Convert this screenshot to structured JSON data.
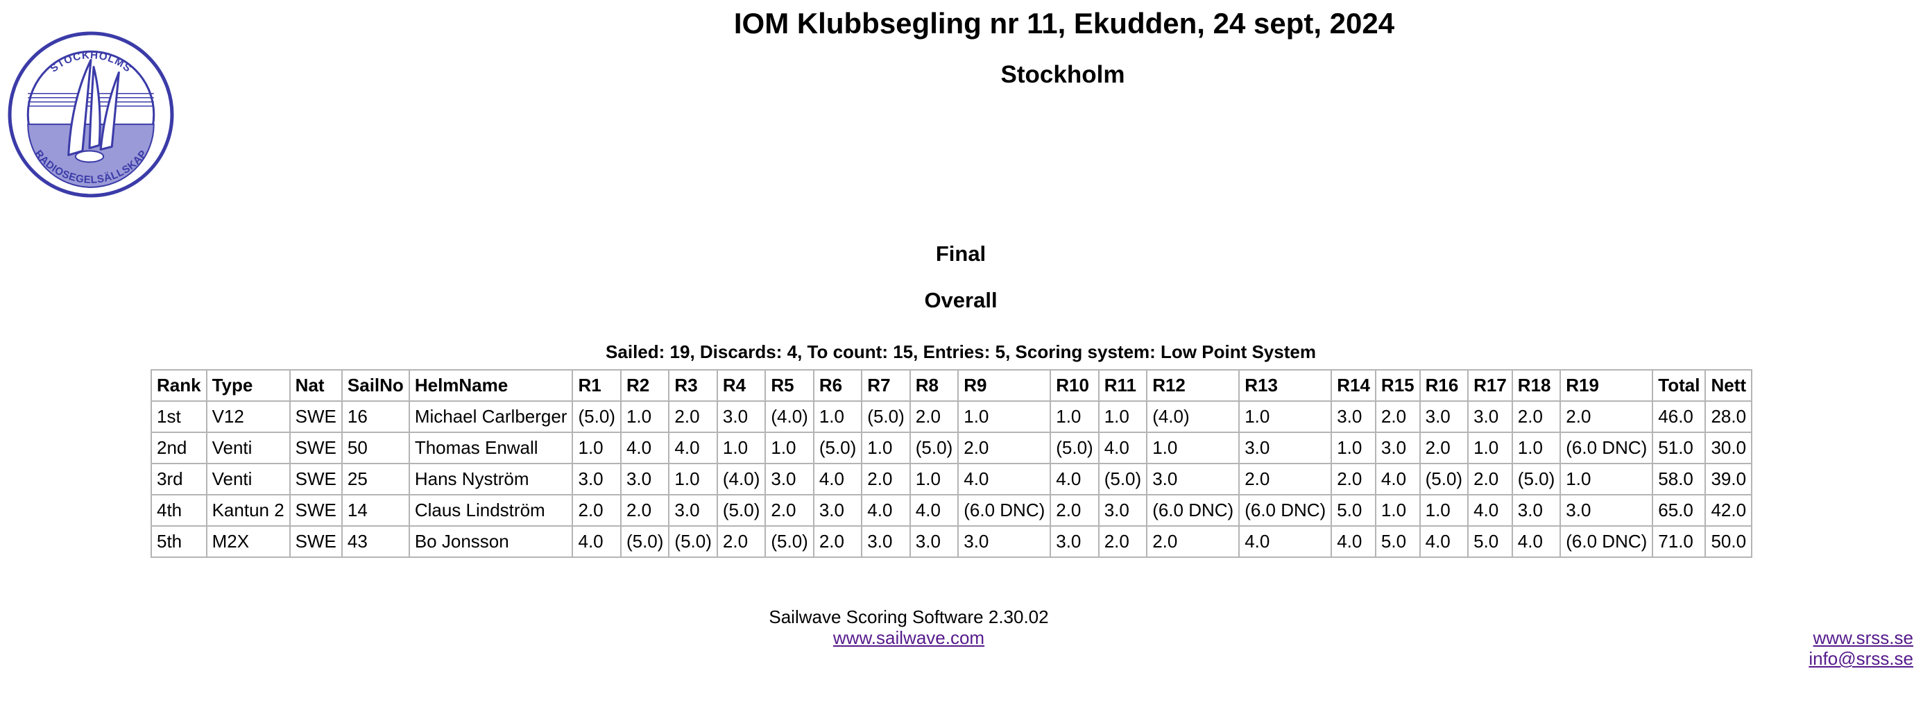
{
  "logo": {
    "text_top": "STOCKHOLMS",
    "text_bottom": "RADIOSEGELSÄLLSKAP",
    "color": "#3b3ba8"
  },
  "header": {
    "title": "IOM Klubbsegling nr 11, Ekudden, 24 sept, 2024",
    "venue": "Stockholm",
    "status": "Final",
    "group": "Overall"
  },
  "summary": "Sailed: 19, Discards: 4, To count: 15, Entries: 5, Scoring system: Low Point System",
  "table": {
    "columns": [
      "Rank",
      "Type",
      "Nat",
      "SailNo",
      "HelmName",
      "R1",
      "R2",
      "R3",
      "R4",
      "R5",
      "R6",
      "R7",
      "R8",
      "R9",
      "R10",
      "R11",
      "R12",
      "R13",
      "R14",
      "R15",
      "R16",
      "R17",
      "R18",
      "R19",
      "Total",
      "Nett"
    ],
    "rows": [
      [
        "1st",
        "V12",
        "SWE",
        "16",
        "Michael Carlberger",
        "(5.0)",
        "1.0",
        "2.0",
        "3.0",
        "(4.0)",
        "1.0",
        "(5.0)",
        "2.0",
        "1.0",
        "1.0",
        "1.0",
        "(4.0)",
        "1.0",
        "3.0",
        "2.0",
        "3.0",
        "3.0",
        "2.0",
        "2.0",
        "46.0",
        "28.0"
      ],
      [
        "2nd",
        "Venti",
        "SWE",
        "50",
        "Thomas Enwall",
        "1.0",
        "4.0",
        "4.0",
        "1.0",
        "1.0",
        "(5.0)",
        "1.0",
        "(5.0)",
        "2.0",
        "(5.0)",
        "4.0",
        "1.0",
        "3.0",
        "1.0",
        "3.0",
        "2.0",
        "1.0",
        "1.0",
        "(6.0 DNC)",
        "51.0",
        "30.0"
      ],
      [
        "3rd",
        "Venti",
        "SWE",
        "25",
        "Hans Nyström",
        "3.0",
        "3.0",
        "1.0",
        "(4.0)",
        "3.0",
        "4.0",
        "2.0",
        "1.0",
        "4.0",
        "4.0",
        "(5.0)",
        "3.0",
        "2.0",
        "2.0",
        "4.0",
        "(5.0)",
        "2.0",
        "(5.0)",
        "1.0",
        "58.0",
        "39.0"
      ],
      [
        "4th",
        "Kantun 2",
        "SWE",
        "14",
        "Claus Lindström",
        "2.0",
        "2.0",
        "3.0",
        "(5.0)",
        "2.0",
        "3.0",
        "4.0",
        "4.0",
        "(6.0 DNC)",
        "2.0",
        "3.0",
        "(6.0 DNC)",
        "(6.0 DNC)",
        "5.0",
        "1.0",
        "1.0",
        "4.0",
        "3.0",
        "3.0",
        "65.0",
        "42.0"
      ],
      [
        "5th",
        "M2X",
        "SWE",
        "43",
        "Bo Jonsson",
        "4.0",
        "(5.0)",
        "(5.0)",
        "2.0",
        "(5.0)",
        "2.0",
        "3.0",
        "3.0",
        "3.0",
        "3.0",
        "2.0",
        "2.0",
        "4.0",
        "4.0",
        "5.0",
        "4.0",
        "5.0",
        "4.0",
        "(6.0 DNC)",
        "71.0",
        "50.0"
      ]
    ]
  },
  "footer": {
    "software": "Sailwave Scoring Software 2.30.02",
    "link": "www.sailwave.com"
  },
  "right_links": {
    "site": "www.srss.se",
    "email": "info@srss.se"
  }
}
